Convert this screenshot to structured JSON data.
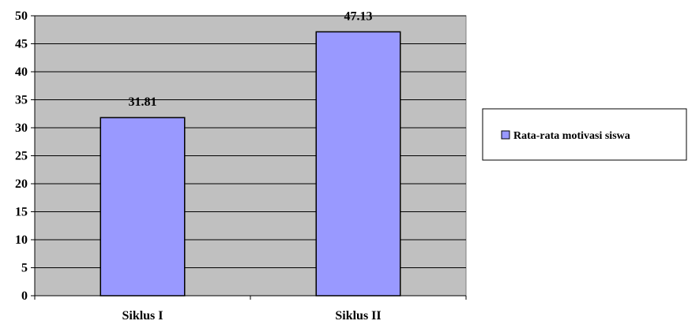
{
  "chart_data": {
    "type": "bar",
    "categories": [
      "Siklus I",
      "Siklus II"
    ],
    "series": [
      {
        "name": "Rata-rata motivasi siswa",
        "values": [
          31.81,
          47.13
        ],
        "labels": [
          "31.81",
          "47.13"
        ]
      }
    ],
    "ylim": [
      0,
      50
    ],
    "yticks": [
      0,
      5,
      10,
      15,
      20,
      25,
      30,
      35,
      40,
      45,
      50
    ],
    "grid": true,
    "legend_position": "right",
    "plot_background": "#c0c0c0",
    "bar_color": "#9999ff"
  }
}
